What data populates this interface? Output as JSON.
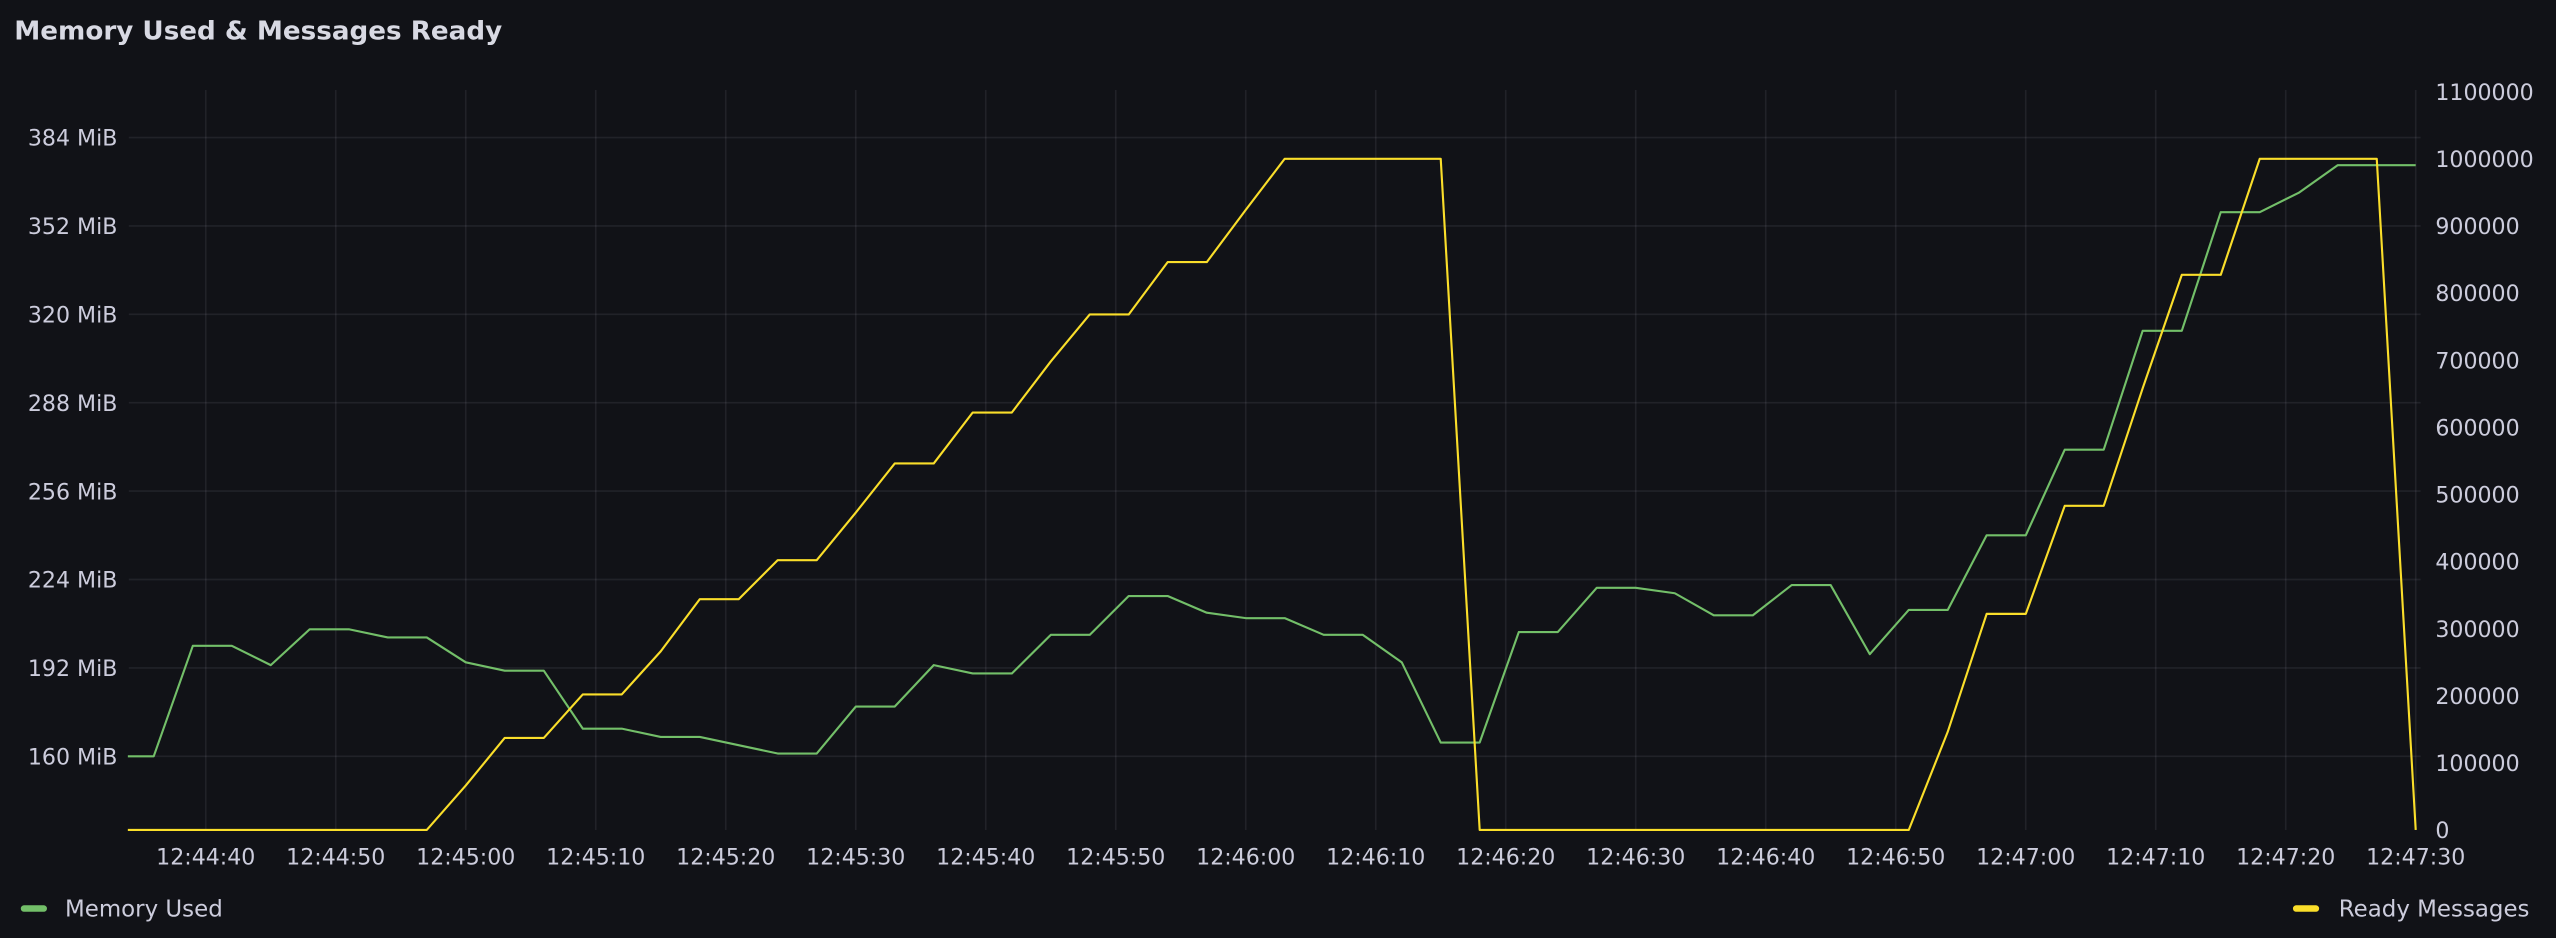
{
  "panel": {
    "title": "Memory Used & Messages Ready"
  },
  "colors": {
    "background": "#111217",
    "memory": "#73bf69",
    "ready": "#fade2a",
    "text": "#ccccdc"
  },
  "chart_data": {
    "type": "line",
    "title": "Memory Used & Messages Ready",
    "x_ticks": [
      "12:44:40",
      "12:44:50",
      "12:45:00",
      "12:45:10",
      "12:45:20",
      "12:45:30",
      "12:45:40",
      "12:45:50",
      "12:46:00",
      "12:46:10",
      "12:46:20",
      "12:46:30",
      "12:46:40",
      "12:46:50",
      "12:47:00",
      "12:47:10",
      "12:47:20",
      "12:47:30"
    ],
    "y_left_ticks": [
      "384 MiB",
      "352 MiB",
      "320 MiB",
      "288 MiB",
      "256 MiB",
      "224 MiB",
      "192 MiB",
      "160 MiB"
    ],
    "y_left_tick_values": [
      384,
      352,
      320,
      288,
      256,
      224,
      192,
      160
    ],
    "y_left_unit": "MiB",
    "y_left_range": [
      133,
      401
    ],
    "y_right_ticks": [
      "1100000",
      "1000000",
      "900000",
      "800000",
      "700000",
      "600000",
      "500000",
      "400000",
      "300000",
      "200000",
      "100000",
      "0"
    ],
    "y_right_tick_values": [
      1100000,
      1000000,
      900000,
      800000,
      700000,
      600000,
      500000,
      400000,
      300000,
      200000,
      100000,
      0
    ],
    "y_right_range": [
      0,
      1100000
    ],
    "x_range": [
      "12:44:34",
      "12:47:30"
    ],
    "grid": true,
    "legend_placement": "bottom",
    "series": [
      {
        "name": "Memory Used",
        "axis": "left",
        "color": "#73bf69",
        "x": [
          "12:44:34",
          "12:44:36",
          "12:44:39",
          "12:44:42",
          "12:44:45",
          "12:44:48",
          "12:44:51",
          "12:44:54",
          "12:44:57",
          "12:45:00",
          "12:45:03",
          "12:45:06",
          "12:45:09",
          "12:45:12",
          "12:45:15",
          "12:45:18",
          "12:45:24",
          "12:45:27",
          "12:45:30",
          "12:45:33",
          "12:45:36",
          "12:45:39",
          "12:45:42",
          "12:45:45",
          "12:45:48",
          "12:45:51",
          "12:45:54",
          "12:45:57",
          "12:46:00",
          "12:46:03",
          "12:46:06",
          "12:46:09",
          "12:46:12",
          "12:46:15",
          "12:46:18",
          "12:46:21",
          "12:46:24",
          "12:46:27",
          "12:46:30",
          "12:46:33",
          "12:46:36",
          "12:46:39",
          "12:46:42",
          "12:46:45",
          "12:46:48",
          "12:46:51",
          "12:46:54",
          "12:46:57",
          "12:47:00",
          "12:47:03",
          "12:47:06",
          "12:47:09",
          "12:47:12",
          "12:47:15",
          "12:47:18",
          "12:47:21",
          "12:47:24",
          "12:47:27",
          "12:47:30"
        ],
        "values": [
          160,
          160,
          200,
          200,
          193,
          206,
          206,
          203,
          203,
          194,
          191,
          191,
          170,
          170,
          167,
          167,
          161,
          161,
          178,
          178,
          193,
          190,
          190,
          204,
          204,
          218,
          218,
          212,
          210,
          210,
          204,
          204,
          194,
          165,
          165,
          205,
          205,
          221,
          221,
          219,
          211,
          211,
          222,
          222,
          197,
          213,
          213,
          240,
          240,
          271,
          271,
          314,
          314,
          357,
          357,
          364,
          374,
          374,
          374
        ]
      },
      {
        "name": "Ready Messages",
        "axis": "right",
        "color": "#fade2a",
        "x": [
          "12:44:34",
          "12:44:57",
          "12:45:00",
          "12:45:03",
          "12:45:06",
          "12:45:09",
          "12:45:12",
          "12:45:15",
          "12:45:18",
          "12:45:21",
          "12:45:24",
          "12:45:27",
          "12:45:30",
          "12:45:33",
          "12:45:36",
          "12:45:39",
          "12:45:42",
          "12:45:45",
          "12:45:48",
          "12:45:51",
          "12:45:54",
          "12:45:57",
          "12:46:00",
          "12:46:03",
          "12:46:15",
          "12:46:18",
          "12:46:51",
          "12:46:54",
          "12:46:57",
          "12:47:00",
          "12:47:03",
          "12:47:06",
          "12:47:09",
          "12:47:12",
          "12:47:15",
          "12:47:18",
          "12:47:27",
          "12:47:30"
        ],
        "values": [
          0,
          0,
          66000,
          137000,
          137000,
          202000,
          202000,
          266000,
          344000,
          344000,
          402000,
          402000,
          473000,
          546000,
          546000,
          622000,
          622000,
          698000,
          768000,
          768000,
          846000,
          846000,
          924000,
          1000000,
          1000000,
          0,
          0,
          146000,
          322000,
          322000,
          483000,
          483000,
          658000,
          827000,
          827000,
          1000000,
          1000000,
          0
        ]
      }
    ]
  },
  "legend": [
    {
      "label": "Memory Used",
      "color": "#73bf69"
    },
    {
      "label": "Ready Messages",
      "color": "#fade2a"
    }
  ]
}
